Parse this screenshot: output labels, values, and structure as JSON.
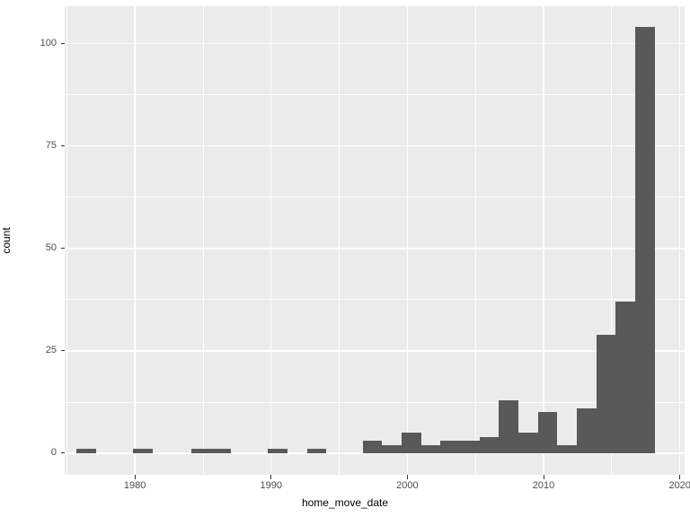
{
  "chart_data": {
    "type": "histogram",
    "title": "",
    "xlabel": "home_move_date",
    "ylabel": "count",
    "x_tick_values": [
      1980,
      1990,
      2000,
      2010,
      2020
    ],
    "x_tick_labels": [
      "1980",
      "1990",
      "2000",
      "2010",
      "2020"
    ],
    "y_tick_values": [
      0,
      25,
      50,
      75,
      100
    ],
    "y_tick_labels": [
      "0",
      "25",
      "50",
      "75",
      "100"
    ],
    "x_minor_ticks": [
      1975,
      1985,
      1995,
      2005,
      2015
    ],
    "y_minor_ticks": [
      12.5,
      37.5,
      62.5,
      87.5
    ],
    "x_range": [
      1974.85,
      2020.35
    ],
    "y_range": [
      -5.26,
      109.1
    ],
    "grid": true,
    "legend_position": "none",
    "bin_width_years": 1.43,
    "bins": [
      {
        "x0": 1975.71,
        "x1": 1977.14,
        "count": 1
      },
      {
        "x0": 1979.89,
        "x1": 1981.32,
        "count": 1
      },
      {
        "x0": 1984.17,
        "x1": 1985.6,
        "count": 1
      },
      {
        "x0": 1985.6,
        "x1": 1987.03,
        "count": 1
      },
      {
        "x0": 1989.78,
        "x1": 1991.21,
        "count": 1
      },
      {
        "x0": 1992.64,
        "x1": 1994.07,
        "count": 1
      },
      {
        "x0": 1996.73,
        "x1": 1998.15,
        "count": 3
      },
      {
        "x0": 1998.15,
        "x1": 1999.58,
        "count": 2
      },
      {
        "x0": 1999.58,
        "x1": 2001.01,
        "count": 5
      },
      {
        "x0": 2001.01,
        "x1": 2002.44,
        "count": 2
      },
      {
        "x0": 2002.44,
        "x1": 2003.87,
        "count": 3
      },
      {
        "x0": 2003.87,
        "x1": 2005.3,
        "count": 3
      },
      {
        "x0": 2005.3,
        "x1": 2006.72,
        "count": 4
      },
      {
        "x0": 2006.72,
        "x1": 2008.15,
        "count": 13
      },
      {
        "x0": 2008.15,
        "x1": 2009.58,
        "count": 5
      },
      {
        "x0": 2009.58,
        "x1": 2011.01,
        "count": 10
      },
      {
        "x0": 2011.01,
        "x1": 2012.44,
        "count": 2
      },
      {
        "x0": 2012.44,
        "x1": 2013.87,
        "count": 11
      },
      {
        "x0": 2013.87,
        "x1": 2015.29,
        "count": 29
      },
      {
        "x0": 2015.29,
        "x1": 2016.72,
        "count": 37
      },
      {
        "x0": 2016.72,
        "x1": 2018.15,
        "count": 104
      }
    ],
    "colors": {
      "figure_background": "#FFFFFF",
      "panel_background": "#EBEBEB",
      "gridline": "#FFFFFF",
      "bar_fill": "#595959",
      "tick_mark": "#333333",
      "tick_label": "#4D4D4D",
      "axis_title": "#000000"
    }
  }
}
